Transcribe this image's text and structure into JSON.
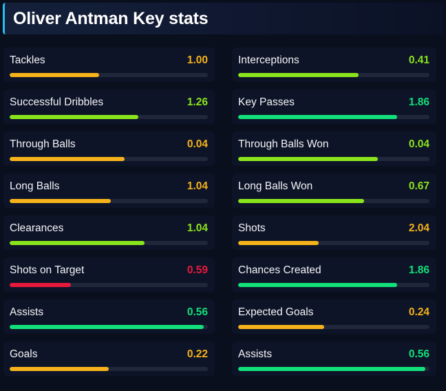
{
  "title": "Oliver Antman Key stats",
  "colors": {
    "orange": "#f5b21b",
    "lime": "#8ae41c",
    "green": "#12e07a",
    "red": "#e8193c",
    "accent": "#22c1f0"
  },
  "stats": [
    {
      "label": "Tackles",
      "value": "1.00",
      "color": "orange",
      "fill": 0.45
    },
    {
      "label": "Interceptions",
      "value": "0.41",
      "color": "lime",
      "fill": 0.63
    },
    {
      "label": "Successful Dribbles",
      "value": "1.26",
      "color": "lime",
      "fill": 0.65
    },
    {
      "label": "Key Passes",
      "value": "1.86",
      "color": "green",
      "fill": 0.83
    },
    {
      "label": "Through Balls",
      "value": "0.04",
      "color": "orange",
      "fill": 0.58
    },
    {
      "label": "Through Balls Won",
      "value": "0.04",
      "color": "lime",
      "fill": 0.73
    },
    {
      "label": "Long Balls",
      "value": "1.04",
      "color": "orange",
      "fill": 0.51
    },
    {
      "label": "Long Balls Won",
      "value": "0.67",
      "color": "lime",
      "fill": 0.66
    },
    {
      "label": "Clearances",
      "value": "1.04",
      "color": "lime",
      "fill": 0.68
    },
    {
      "label": "Shots",
      "value": "2.04",
      "color": "orange",
      "fill": 0.42
    },
    {
      "label": "Shots on Target",
      "value": "0.59",
      "color": "red",
      "fill": 0.31
    },
    {
      "label": "Chances Created",
      "value": "1.86",
      "color": "green",
      "fill": 0.83
    },
    {
      "label": "Assists",
      "value": "0.56",
      "color": "green",
      "fill": 0.98
    },
    {
      "label": "Expected Goals",
      "value": "0.24",
      "color": "orange",
      "fill": 0.45
    },
    {
      "label": "Goals",
      "value": "0.22",
      "color": "orange",
      "fill": 0.5
    },
    {
      "label": "Assists",
      "value": "0.56",
      "color": "green",
      "fill": 0.98
    }
  ]
}
